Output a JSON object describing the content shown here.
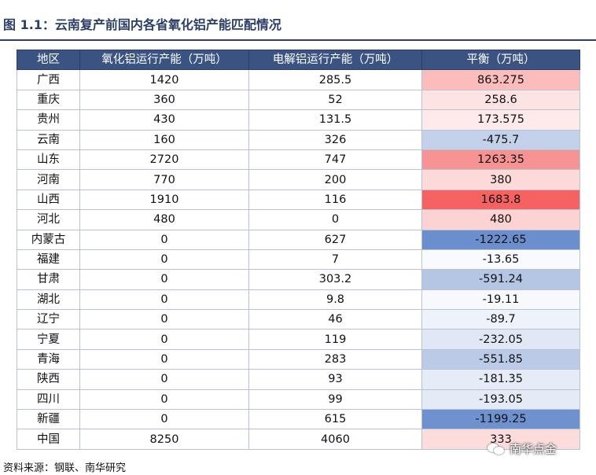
{
  "title": "图 1.1：云南复产前国内各省氧化铝产能匹配情况",
  "source": "资料来源：钢联、南华研究",
  "watermark": "南华点金",
  "table": {
    "headers": [
      "地区",
      "氧化铝运行产能（万吨）",
      "电解铝运行产能（万吨）",
      "平衡（万吨）"
    ],
    "rows": [
      {
        "region": "广西",
        "alumina": "1420",
        "electrolytic": "285.5",
        "balance": "863.275",
        "color": "#fbbcbc"
      },
      {
        "region": "重庆",
        "alumina": "360",
        "electrolytic": "52",
        "balance": "258.6",
        "color": "#fde3e3"
      },
      {
        "region": "贵州",
        "alumina": "430",
        "electrolytic": "131.5",
        "balance": "173.575",
        "color": "#feeaea"
      },
      {
        "region": "云南",
        "alumina": "160",
        "electrolytic": "326",
        "balance": "-475.7",
        "color": "#c3d1ea"
      },
      {
        "region": "山东",
        "alumina": "2720",
        "electrolytic": "747",
        "balance": "1263.35",
        "color": "#f89393"
      },
      {
        "region": "河南",
        "alumina": "770",
        "electrolytic": "200",
        "balance": "380",
        "color": "#fdd9d9"
      },
      {
        "region": "山西",
        "alumina": "1910",
        "electrolytic": "116",
        "balance": "1683.8",
        "color": "#f66262"
      },
      {
        "region": "河北",
        "alumina": "480",
        "electrolytic": "0",
        "balance": "480",
        "color": "#fcd2d2"
      },
      {
        "region": "内蒙古",
        "alumina": "0",
        "electrolytic": "627",
        "balance": "-1222.65",
        "color": "#6b8fce"
      },
      {
        "region": "福建",
        "alumina": "0",
        "electrolytic": "7",
        "balance": "-13.65",
        "color": "#f9fafd"
      },
      {
        "region": "甘肃",
        "alumina": "0",
        "electrolytic": "303.2",
        "balance": "-591.24",
        "color": "#b5c6e5"
      },
      {
        "region": "湖北",
        "alumina": "0",
        "electrolytic": "9.8",
        "balance": "-19.11",
        "color": "#f8f9fd"
      },
      {
        "region": "辽宁",
        "alumina": "0",
        "electrolytic": "46",
        "balance": "-89.7",
        "color": "#eef2fa"
      },
      {
        "region": "宁夏",
        "alumina": "0",
        "electrolytic": "119",
        "balance": "-232.05",
        "color": "#e0e7f5"
      },
      {
        "region": "青海",
        "alumina": "0",
        "electrolytic": "283",
        "balance": "-551.85",
        "color": "#bacae7"
      },
      {
        "region": "陕西",
        "alumina": "0",
        "electrolytic": "93",
        "balance": "-181.35",
        "color": "#e6ecf7"
      },
      {
        "region": "四川",
        "alumina": "0",
        "electrolytic": "99",
        "balance": "-193.05",
        "color": "#e4eaf6"
      },
      {
        "region": "新疆",
        "alumina": "0",
        "electrolytic": "615",
        "balance": "-1199.25",
        "color": "#6e92cf"
      },
      {
        "region": "中国",
        "alumina": "8250",
        "electrolytic": "4060",
        "balance": "333",
        "color": "#fddcdc"
      }
    ]
  }
}
